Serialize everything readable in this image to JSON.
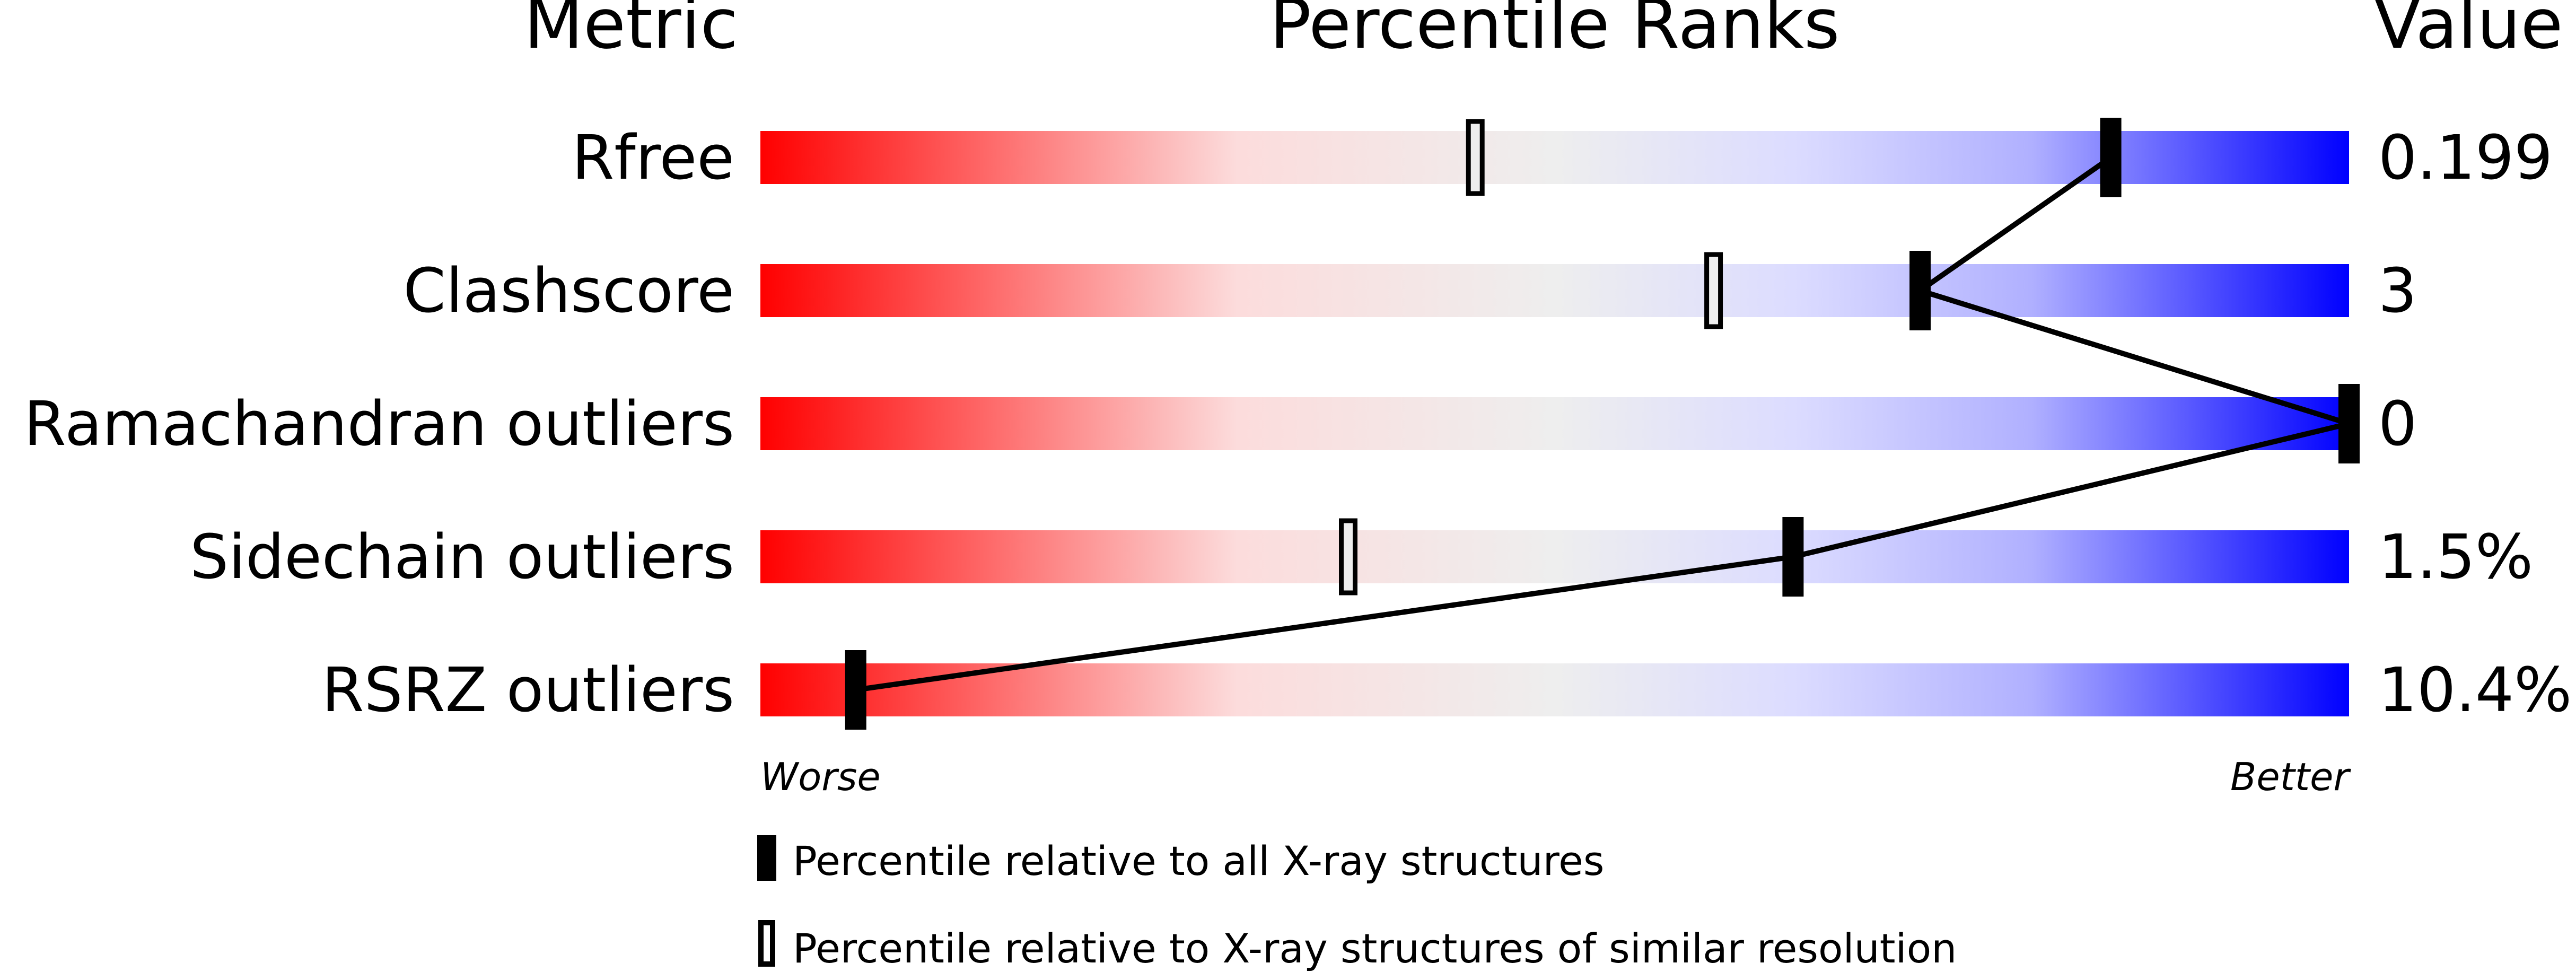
{
  "chart_data": {
    "type": "bar",
    "headers": {
      "metric": "Metric",
      "title": "Percentile Ranks",
      "value": "Value"
    },
    "xlim": [
      0,
      100
    ],
    "metrics": [
      {
        "name": "Rfree",
        "value": "0.199",
        "percentile_all": 85,
        "percentile_similar": 45
      },
      {
        "name": "Clashscore",
        "value": "3",
        "percentile_all": 73,
        "percentile_similar": 60
      },
      {
        "name": "Ramachandran outliers",
        "value": "0",
        "percentile_all": 100,
        "percentile_similar": null
      },
      {
        "name": "Sidechain outliers",
        "value": "1.5%",
        "percentile_all": 65,
        "percentile_similar": 37
      },
      {
        "name": "RSRZ outliers",
        "value": "10.4%",
        "percentile_all": 6,
        "percentile_similar": 6
      }
    ],
    "axis_labels": {
      "worse": "Worse",
      "better": "Better"
    },
    "legend": [
      {
        "marker": "filled",
        "label": "Percentile relative to all X-ray structures"
      },
      {
        "marker": "open",
        "label": "Percentile relative to X-ray structures of similar resolution"
      }
    ],
    "colors": {
      "worse": "#ff0000",
      "mid": "#eeeeee",
      "better": "#0000ff"
    }
  }
}
